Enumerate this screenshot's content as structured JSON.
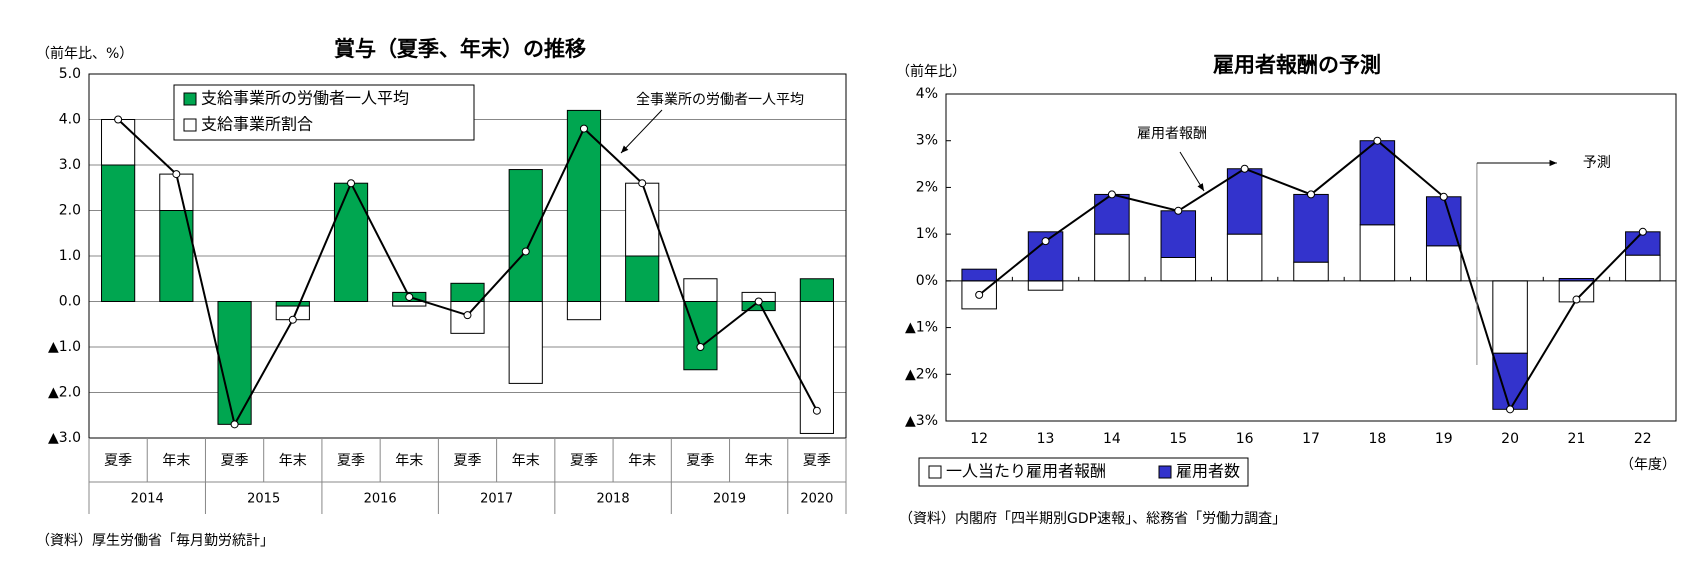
{
  "chart_data": [
    {
      "type": "bar",
      "title": "賞与（夏季、年末）の推移",
      "ylabel": "（前年比、%）",
      "categories": [
        "夏季",
        "年末",
        "夏季",
        "年末",
        "夏季",
        "年末",
        "夏季",
        "年末",
        "夏季",
        "年末",
        "夏季",
        "年末",
        "夏季"
      ],
      "groups": [
        "2014",
        "2015",
        "2016",
        "2017",
        "2018",
        "2019",
        "2020"
      ],
      "series": [
        {
          "name": "支給事業所の労働者一人平均",
          "color": "#00a650",
          "type": "bar",
          "values": [
            3.0,
            2.0,
            -2.7,
            -0.1,
            2.6,
            0.2,
            0.4,
            2.9,
            4.2,
            1.0,
            -1.5,
            -0.2,
            0.5
          ]
        },
        {
          "name": "支給事業所割合",
          "color": "#ffffff",
          "type": "bar",
          "values": [
            1.0,
            0.8,
            0.0,
            -0.3,
            0.0,
            -0.1,
            -0.7,
            -1.8,
            -0.4,
            1.6,
            0.5,
            0.2,
            -2.9
          ]
        },
        {
          "name": "全事業所の労働者一人平均",
          "color": "#000000",
          "type": "line",
          "values": [
            4.0,
            2.8,
            -2.7,
            -0.4,
            2.6,
            0.1,
            -0.3,
            1.1,
            3.8,
            2.6,
            -1.0,
            0.0,
            -2.4
          ]
        }
      ],
      "ylim": [
        -3,
        5
      ],
      "yticks": [
        {
          "value": 5,
          "label": "5.0"
        },
        {
          "value": 4,
          "label": "4.0"
        },
        {
          "value": 3,
          "label": "3.0"
        },
        {
          "value": 2,
          "label": "2.0"
        },
        {
          "value": 1,
          "label": "1.0"
        },
        {
          "value": 0,
          "label": "0.0"
        },
        {
          "value": -1,
          "label": "▲1.0"
        },
        {
          "value": -2,
          "label": "▲2.0"
        },
        {
          "value": -3,
          "label": "▲3.0"
        }
      ],
      "grid": true,
      "source": "（資料）厚生労働省「毎月勤労統計」"
    },
    {
      "type": "bar",
      "title": "雇用者報酬の予測",
      "ylabel": "（前年比）",
      "xlabel": "（年度）",
      "categories": [
        "12",
        "13",
        "14",
        "15",
        "16",
        "17",
        "18",
        "19",
        "20",
        "21",
        "22"
      ],
      "series": [
        {
          "name": "一人当たり雇用者報酬",
          "color": "#ffffff",
          "type": "bar",
          "values": [
            -0.6,
            -0.2,
            1.0,
            0.5,
            1.0,
            0.4,
            1.2,
            0.75,
            -1.55,
            -0.45,
            0.55
          ]
        },
        {
          "name": "雇用者数",
          "color": "#3333cc",
          "type": "bar",
          "values": [
            0.25,
            1.05,
            0.85,
            1.0,
            1.4,
            1.45,
            1.8,
            1.05,
            -1.2,
            0.05,
            0.5
          ]
        },
        {
          "name": "雇用者報酬",
          "color": "#000000",
          "type": "line",
          "values": [
            -0.3,
            0.85,
            1.85,
            1.5,
            2.4,
            1.85,
            3.0,
            1.8,
            -2.75,
            -0.4,
            1.05
          ]
        }
      ],
      "ylim": [
        -3,
        4
      ],
      "yticks": [
        {
          "value": 4,
          "label": "4%"
        },
        {
          "value": 3,
          "label": "3%"
        },
        {
          "value": 2,
          "label": "2%"
        },
        {
          "value": 1,
          "label": "1%"
        },
        {
          "value": 0,
          "label": "0%"
        },
        {
          "value": -1,
          "label": "▲1%"
        },
        {
          "value": -2,
          "label": "▲2%"
        },
        {
          "value": -3,
          "label": "▲3%"
        }
      ],
      "grid": false,
      "annotations": [
        {
          "text": "予測"
        }
      ],
      "source": "（資料）内閣府「四半期別GDP速報」、総務省「労働力調査」"
    }
  ]
}
